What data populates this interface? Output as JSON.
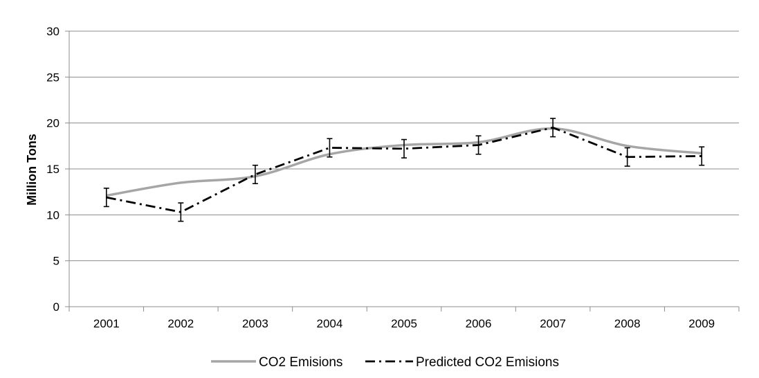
{
  "chart_data": {
    "type": "line",
    "title": "",
    "xlabel": "",
    "ylabel": "Million Tons",
    "categories": [
      "2001",
      "2002",
      "2003",
      "2004",
      "2005",
      "2006",
      "2007",
      "2008",
      "2009"
    ],
    "ylim": [
      0,
      30
    ],
    "yticks": [
      0,
      5,
      10,
      15,
      20,
      25,
      30
    ],
    "grid": true,
    "legend_position": "bottom",
    "series": [
      {
        "name": "CO2 Emisions",
        "values": [
          12.1,
          13.5,
          14.2,
          16.6,
          17.6,
          17.9,
          19.4,
          17.5,
          16.7
        ],
        "color": "#a6a6a6",
        "style": "solid"
      },
      {
        "name": "Predicted CO2 Emisions",
        "values": [
          11.9,
          10.3,
          14.4,
          17.3,
          17.2,
          17.6,
          19.5,
          16.3,
          16.4
        ],
        "error": [
          1.0,
          1.0,
          1.0,
          1.0,
          1.0,
          1.0,
          1.0,
          1.0,
          1.0
        ],
        "color": "#000000",
        "style": "dash-dot"
      }
    ]
  }
}
